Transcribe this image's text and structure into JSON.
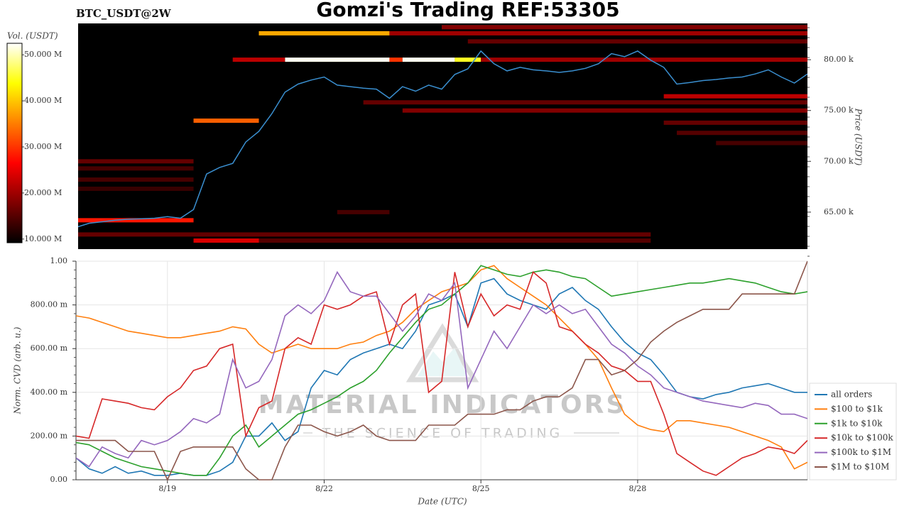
{
  "chart_data": [
    {
      "type": "heatmap",
      "title": "Gomzi's Trading REF:53305",
      "subtitle": "BTC_USDT@2W",
      "colorbar_label": "Vol. (USDT)",
      "clim": [
        9200000,
        52500000
      ],
      "cticks": [
        {
          "value": 10000000,
          "label": "10.000 M"
        },
        {
          "value": 20000000,
          "label": "20.000 M"
        },
        {
          "value": 30000000,
          "label": "30.000 M"
        },
        {
          "value": 40000000,
          "label": "40.000 M"
        },
        {
          "value": 50000000,
          "label": "50.000 M"
        }
      ],
      "y_label": "Price (USDT)",
      "ylim": [
        61360,
        83570
      ],
      "yticks": [
        {
          "value": 65000,
          "label": "65.00 k"
        },
        {
          "value": 70000,
          "label": "70.00 k"
        },
        {
          "value": 75000,
          "label": "75.00 k"
        },
        {
          "value": 80000,
          "label": "80.00 k"
        }
      ],
      "cells": [
        {
          "price": 80000,
          "start": 16,
          "end": 24,
          "volume": 52000000
        },
        {
          "price": 80000,
          "start": 24,
          "end": 25,
          "volume": 30000000
        },
        {
          "price": 80000,
          "start": 25,
          "end": 29,
          "volume": 52000000
        },
        {
          "price": 80000,
          "start": 29,
          "end": 31,
          "volume": 45000000
        },
        {
          "price": 80000,
          "start": 12,
          "end": 16,
          "volume": 22000000
        },
        {
          "price": 80000,
          "start": 31,
          "end": 56,
          "volume": 20000000
        },
        {
          "price": 82600,
          "start": 14,
          "end": 24,
          "volume": 38000000
        },
        {
          "price": 82600,
          "start": 24,
          "end": 56,
          "volume": 20000000
        },
        {
          "price": 83200,
          "start": 28,
          "end": 56,
          "volume": 18000000
        },
        {
          "price": 81800,
          "start": 30,
          "end": 56,
          "volume": 16000000
        },
        {
          "price": 74000,
          "start": 9,
          "end": 14,
          "volume": 33000000
        },
        {
          "price": 75800,
          "start": 22,
          "end": 56,
          "volume": 16000000
        },
        {
          "price": 75000,
          "start": 25,
          "end": 56,
          "volume": 18000000
        },
        {
          "price": 76400,
          "start": 45,
          "end": 56,
          "volume": 22000000
        },
        {
          "price": 73800,
          "start": 45,
          "end": 56,
          "volume": 16000000
        },
        {
          "price": 72800,
          "start": 46,
          "end": 56,
          "volume": 15000000
        },
        {
          "price": 71800,
          "start": 49,
          "end": 56,
          "volume": 14000000
        },
        {
          "price": 70000,
          "start": 0,
          "end": 9,
          "volume": 16000000
        },
        {
          "price": 69300,
          "start": 0,
          "end": 9,
          "volume": 14000000
        },
        {
          "price": 68200,
          "start": 0,
          "end": 9,
          "volume": 14000000
        },
        {
          "price": 67300,
          "start": 0,
          "end": 9,
          "volume": 13000000
        },
        {
          "price": 64200,
          "start": 0,
          "end": 9,
          "volume": 28000000
        },
        {
          "price": 62800,
          "start": 0,
          "end": 44,
          "volume": 16000000
        },
        {
          "price": 62200,
          "start": 9,
          "end": 14,
          "volume": 24000000
        },
        {
          "price": 62200,
          "start": 14,
          "end": 44,
          "volume": 15000000
        },
        {
          "price": 65000,
          "start": 20,
          "end": 24,
          "volume": 14000000
        }
      ],
      "line": {
        "color": "#3a8fd0",
        "values": [
          63500,
          63900,
          64050,
          64200,
          64300,
          64350,
          64400,
          64550,
          64400,
          65250,
          68750,
          69400,
          69800,
          71900,
          72950,
          74700,
          76800,
          77600,
          78000,
          78300,
          77500,
          77350,
          77200,
          77100,
          76200,
          77350,
          76900,
          77500,
          77100,
          78550,
          79100,
          80850,
          79600,
          78900,
          79250,
          79000,
          78900,
          78750,
          78900,
          79150,
          79600,
          80600,
          80300,
          80850,
          79950,
          79250,
          77600,
          77750,
          77950,
          78050,
          78200,
          78300,
          78600,
          79000,
          78300,
          77700,
          78600
        ]
      }
    },
    {
      "type": "line",
      "x_label": "Date (UTC)",
      "y_label": "Norm. CVD (arb. u.)",
      "categories": [
        null,
        null,
        null,
        null,
        null,
        null,
        null,
        "8/19",
        null,
        null,
        null,
        null,
        null,
        null,
        null,
        null,
        null,
        null,
        null,
        "8/22",
        null,
        null,
        null,
        null,
        null,
        null,
        null,
        null,
        null,
        null,
        null,
        "8/25",
        null,
        null,
        null,
        null,
        null,
        null,
        null,
        null,
        null,
        null,
        null,
        "8/28",
        null,
        null,
        null,
        null,
        null,
        null,
        null,
        null,
        null,
        null,
        null,
        null,
        null
      ],
      "ylim": [
        0,
        1
      ],
      "yticks": [
        {
          "value": 0,
          "label": "0.00"
        },
        {
          "value": 0.2,
          "label": "200.00 m"
        },
        {
          "value": 0.4,
          "label": "400.00 m"
        },
        {
          "value": 0.6,
          "label": "600.00 m"
        },
        {
          "value": 0.8,
          "label": "800.00 m"
        },
        {
          "value": 1,
          "label": "1.00"
        }
      ],
      "grid": true,
      "legend": "right",
      "watermark": [
        "MATERIAL INDICATORS",
        "THE SCIENCE OF TRADING"
      ],
      "series": [
        {
          "name": "all orders",
          "color": "#1f77b4",
          "values": [
            0.1,
            0.05,
            0.03,
            0.06,
            0.03,
            0.04,
            0.02,
            0.02,
            0.03,
            0.02,
            0.02,
            0.04,
            0.08,
            0.2,
            0.2,
            0.26,
            0.18,
            0.22,
            0.42,
            0.5,
            0.48,
            0.55,
            0.58,
            0.6,
            0.62,
            0.6,
            0.68,
            0.8,
            0.82,
            0.85,
            0.7,
            0.9,
            0.92,
            0.85,
            0.82,
            0.8,
            0.78,
            0.85,
            0.88,
            0.82,
            0.78,
            0.7,
            0.63,
            0.58,
            0.55,
            0.48,
            0.4,
            0.38,
            0.37,
            0.39,
            0.4,
            0.42,
            0.43,
            0.44,
            0.42,
            0.4,
            0.4
          ]
        },
        {
          "name": "$100 to $1k",
          "color": "#ff7f0e",
          "values": [
            0.75,
            0.74,
            0.72,
            0.7,
            0.68,
            0.67,
            0.66,
            0.65,
            0.65,
            0.66,
            0.67,
            0.68,
            0.7,
            0.69,
            0.62,
            0.58,
            0.6,
            0.62,
            0.6,
            0.6,
            0.6,
            0.62,
            0.63,
            0.66,
            0.68,
            0.72,
            0.78,
            0.82,
            0.86,
            0.88,
            0.9,
            0.96,
            0.98,
            0.92,
            0.88,
            0.84,
            0.8,
            0.74,
            0.68,
            0.62,
            0.55,
            0.42,
            0.3,
            0.25,
            0.23,
            0.22,
            0.27,
            0.27,
            0.26,
            0.25,
            0.24,
            0.22,
            0.2,
            0.18,
            0.15,
            0.05,
            0.08
          ]
        },
        {
          "name": "$1k to $10k",
          "color": "#2ca02c",
          "values": [
            0.17,
            0.16,
            0.13,
            0.1,
            0.08,
            0.06,
            0.05,
            0.04,
            0.03,
            0.02,
            0.02,
            0.1,
            0.2,
            0.25,
            0.15,
            0.2,
            0.25,
            0.3,
            0.32,
            0.35,
            0.38,
            0.42,
            0.45,
            0.5,
            0.58,
            0.65,
            0.72,
            0.78,
            0.8,
            0.85,
            0.9,
            0.98,
            0.96,
            0.94,
            0.93,
            0.95,
            0.96,
            0.95,
            0.93,
            0.92,
            0.88,
            0.84,
            0.85,
            0.86,
            0.87,
            0.88,
            0.89,
            0.9,
            0.9,
            0.91,
            0.92,
            0.91,
            0.9,
            0.88,
            0.86,
            0.85,
            0.86
          ]
        },
        {
          "name": "$10k to $100k",
          "color": "#d62728",
          "values": [
            0.2,
            0.19,
            0.37,
            0.36,
            0.35,
            0.33,
            0.32,
            0.38,
            0.42,
            0.5,
            0.52,
            0.6,
            0.62,
            0.2,
            0.33,
            0.36,
            0.6,
            0.65,
            0.62,
            0.8,
            0.78,
            0.8,
            0.84,
            0.86,
            0.62,
            0.8,
            0.85,
            0.4,
            0.45,
            0.95,
            0.7,
            0.85,
            0.75,
            0.8,
            0.78,
            0.95,
            0.9,
            0.7,
            0.68,
            0.62,
            0.58,
            0.52,
            0.5,
            0.45,
            0.45,
            0.3,
            0.12,
            0.08,
            0.04,
            0.02,
            0.06,
            0.1,
            0.12,
            0.15,
            0.14,
            0.12,
            0.18
          ]
        },
        {
          "name": "$100k to $1M",
          "color": "#9467bd",
          "values": [
            0.1,
            0.06,
            0.15,
            0.12,
            0.1,
            0.18,
            0.16,
            0.18,
            0.22,
            0.28,
            0.26,
            0.3,
            0.55,
            0.42,
            0.45,
            0.55,
            0.75,
            0.8,
            0.76,
            0.82,
            0.95,
            0.86,
            0.84,
            0.84,
            0.76,
            0.68,
            0.75,
            0.85,
            0.82,
            0.9,
            0.42,
            0.55,
            0.68,
            0.6,
            0.7,
            0.8,
            0.76,
            0.8,
            0.76,
            0.78,
            0.7,
            0.62,
            0.58,
            0.52,
            0.48,
            0.42,
            0.4,
            0.38,
            0.36,
            0.35,
            0.34,
            0.33,
            0.35,
            0.34,
            0.3,
            0.3,
            0.28
          ]
        },
        {
          "name": "$1M to $10M",
          "color": "#8c564b",
          "values": [
            0.18,
            0.18,
            0.18,
            0.18,
            0.13,
            0.13,
            0.13,
            0,
            0.13,
            0.15,
            0.15,
            0.15,
            0.15,
            0.05,
            0,
            0,
            0.15,
            0.25,
            0.25,
            0.22,
            0.2,
            0.22,
            0.25,
            0.2,
            0.18,
            0.18,
            0.18,
            0.25,
            0.25,
            0.25,
            0.3,
            0.3,
            0.3,
            0.32,
            0.32,
            0.36,
            0.38,
            0.38,
            0.42,
            0.55,
            0.55,
            0.48,
            0.5,
            0.55,
            0.63,
            0.68,
            0.72,
            0.75,
            0.78,
            0.78,
            0.78,
            0.85,
            0.85,
            0.85,
            0.85,
            0.85,
            1
          ]
        }
      ]
    }
  ]
}
